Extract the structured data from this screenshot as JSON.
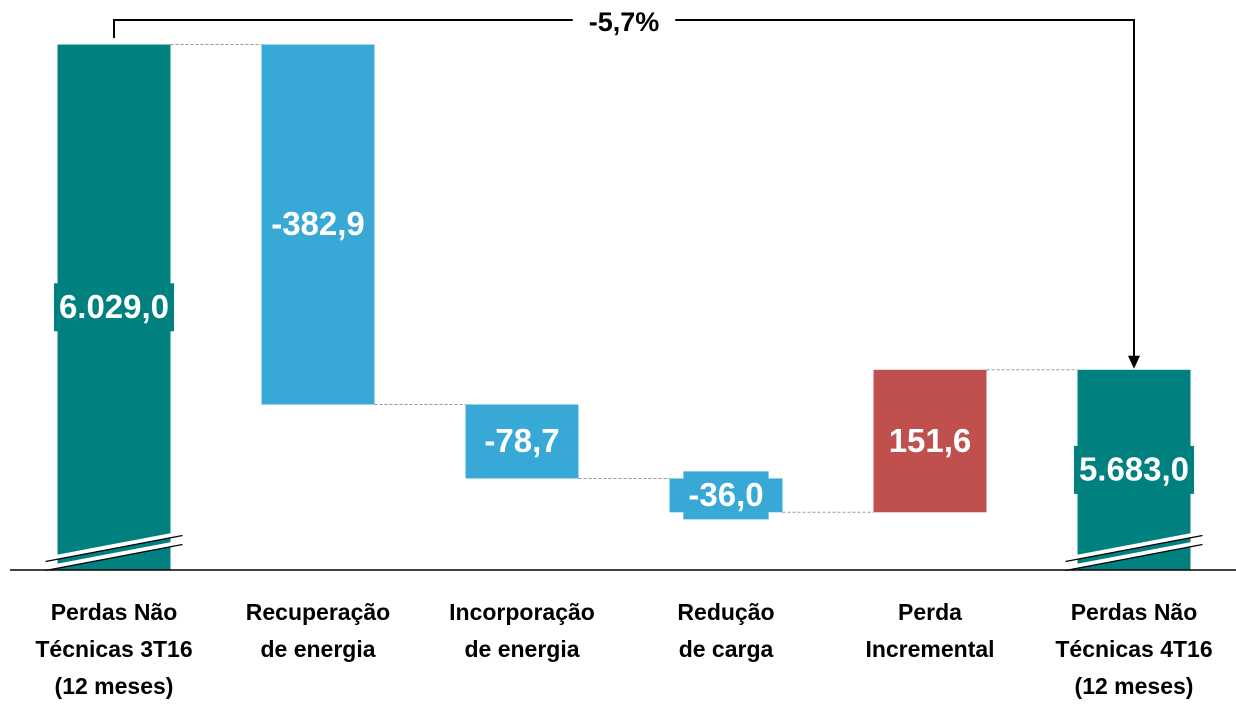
{
  "chart_data": {
    "type": "waterfall",
    "categories": [
      "Perdas Não\nTécnicas 3T16\n(12 meses)",
      "Recuperação\nde energia",
      "Incorporação\nde energia",
      "Redução\nde carga",
      "Perda\nIncremental",
      "Perdas Não\nTécnicas 4T16\n(12 meses)"
    ],
    "values": [
      6029.0,
      -382.9,
      -78.7,
      -36.0,
      151.6,
      5683.0
    ],
    "value_labels": [
      "6.029,0",
      "-382,9",
      "-78,7",
      "-36,0",
      "151,6",
      "5.683,0"
    ],
    "totals": [
      true,
      false,
      false,
      false,
      false,
      true
    ],
    "colors": [
      "#00807f",
      "#38a9d6",
      "#38a9d6",
      "#38a9d6",
      "#c0504d",
      "#00807f"
    ],
    "ylim": [
      5470,
      6060
    ],
    "annotation": "-5,7%"
  }
}
